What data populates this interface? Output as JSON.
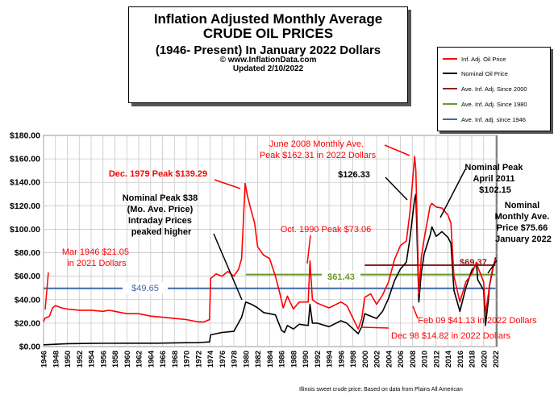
{
  "title": {
    "line1": "Inflation Adjusted Monthly Average",
    "line2": "CRUDE OIL PRICES",
    "line3": "(1946- Present) In January 2022 Dollars",
    "line4": "© www.InflationData.com",
    "line5": "Updated 2/10/2022"
  },
  "legend": {
    "items": [
      {
        "label": "Inf. Adj. Oil Price",
        "color": "#ff0000"
      },
      {
        "label": "Nominal Oil Price",
        "color": "#000000"
      },
      {
        "label": "Ave. Inf. Adj. Since 2000",
        "color": "#8b2323"
      },
      {
        "label": "Ave. Inf. Adj. Since 1980",
        "color": "#6b9a2a"
      },
      {
        "label": "Ave. Inf. adj. since 1946",
        "color": "#3f6aa8"
      }
    ]
  },
  "source_note": "Illinois sweet crude price: Based on data from Plains All American",
  "annotations": {
    "mar1946": [
      "Mar 1946 $21.05",
      "in 2021 Dollars"
    ],
    "dec1979": "Dec. 1979 Peak $139.29",
    "nominal1980": [
      "Nominal Peak $38",
      "(Mo. Ave. Price)",
      "Intraday Prices",
      "peaked higher"
    ],
    "jun2008": [
      "June 2008 Monthly Ave.",
      "Peak $162.31 in 2022 Dollars"
    ],
    "nom2008": "$126.33",
    "oct1990": "Oct. 1990 Peak $73.06",
    "apr2011": [
      "Nominal Peak",
      "April 2011",
      "$102.15"
    ],
    "jan2022": [
      "Nominal",
      "Monthly Ave.",
      "Price $75.66",
      "January 2022"
    ],
    "feb09": "Feb 09 $41.13 in 2022 Dollars",
    "dec98": "Dec 98 $14.82 in 2022 Dollars",
    "avg1946": "$49.65",
    "avg1980": "$61.43",
    "avg2000": "$69.37"
  },
  "chart_data": {
    "type": "line",
    "title": "Inflation Adjusted Monthly Average CRUDE OIL PRICES",
    "xlabel": "",
    "ylabel": "",
    "xlim": [
      1946,
      2022.2
    ],
    "ylim": [
      0,
      180
    ],
    "y_ticks": [
      "$0.00",
      "$20.00",
      "$40.00",
      "$60.00",
      "$80.00",
      "$100.00",
      "$120.00",
      "$140.00",
      "$160.00",
      "$180.00"
    ],
    "y_tick_values": [
      0,
      20,
      40,
      60,
      80,
      100,
      120,
      140,
      160,
      180
    ],
    "x_ticks": [
      "1946",
      "1948",
      "1950",
      "1952",
      "1954",
      "1956",
      "1958",
      "1960",
      "1962",
      "1964",
      "1966",
      "1968",
      "1970",
      "1972",
      "1974",
      "1976",
      "1978",
      "1980",
      "1982",
      "1984",
      "1986",
      "1988",
      "1990",
      "1992",
      "1994",
      "1996",
      "1998",
      "2000",
      "2002",
      "2004",
      "2006",
      "2008",
      "2010",
      "2012",
      "2014",
      "2016",
      "2018",
      "2020",
      "2022"
    ],
    "grid": true,
    "legend_position": "top-right",
    "series": [
      {
        "name": "Inf. Adj. Oil Price",
        "color": "#ff0000",
        "x": [
          1946,
          1946.2,
          1947,
          1947.5,
          1948,
          1949,
          1950,
          1952,
          1954,
          1956,
          1957,
          1958,
          1960,
          1962,
          1964,
          1966,
          1968,
          1970,
          1972,
          1973,
          1973.9,
          1974.1,
          1975,
          1976,
          1977,
          1978,
          1978.8,
          1979.3,
          1979.9,
          1980.3,
          1980.8,
          1981.5,
          1982,
          1983,
          1984,
          1985,
          1985.8,
          1986.3,
          1987,
          1988,
          1989,
          1990.5,
          1990.8,
          1991.2,
          1992,
          1994,
          1996,
          1997,
          1998.9,
          1999.5,
          2000,
          2001,
          2002,
          2003,
          2004,
          2005,
          2006,
          2007,
          2007.6,
          2008.4,
          2008.6,
          2009.1,
          2009.5,
          2010,
          2011,
          2011.3,
          2012,
          2013,
          2014,
          2014.5,
          2015,
          2016,
          2017,
          2018,
          2018.8,
          2019,
          2020,
          2020.3,
          2020.8,
          2021,
          2021.5,
          2022
        ],
        "y": [
          21,
          24,
          26,
          33,
          35,
          33,
          32,
          31,
          31,
          30,
          31,
          30,
          28,
          28,
          26,
          25,
          24,
          23,
          21,
          21,
          23,
          58,
          62,
          60,
          64,
          60,
          66,
          75,
          139,
          128,
          118,
          105,
          85,
          78,
          75,
          60,
          44,
          33,
          43,
          32,
          38,
          38,
          73,
          40,
          37,
          33,
          38,
          35,
          15,
          24,
          42,
          45,
          36,
          44,
          55,
          74,
          86,
          90,
          114,
          162,
          150,
          45,
          75,
          92,
          120,
          122,
          119,
          118,
          112,
          105,
          60,
          38,
          55,
          62,
          72,
          68,
          55,
          28,
          45,
          53,
          66,
          75
        ]
      },
      {
        "name": "Nominal Oil Price",
        "color": "#000000",
        "x": [
          1946,
          1950,
          1955,
          1960,
          1965,
          1970,
          1972,
          1973.9,
          1974.1,
          1976,
          1978,
          1979.3,
          1980,
          1981,
          1982,
          1983,
          1984,
          1985,
          1986,
          1986.5,
          1987,
          1988,
          1989,
          1990.5,
          1990.8,
          1991.2,
          1992,
          1994,
          1996,
          1997,
          1998.9,
          1999.5,
          2000,
          2001,
          2002,
          2003,
          2004,
          2005,
          2006,
          2007,
          2007.6,
          2008.4,
          2008.6,
          2009.1,
          2009.5,
          2010,
          2011,
          2011.3,
          2012,
          2013,
          2014,
          2014.5,
          2015,
          2016,
          2017,
          2018,
          2018.8,
          2019,
          2020,
          2020.3,
          2020.8,
          2021,
          2021.5,
          2022
        ],
        "y": [
          1.5,
          2.5,
          2.8,
          2.9,
          2.9,
          3.3,
          3.4,
          4,
          10,
          12,
          13,
          25,
          38,
          36,
          33,
          29,
          28,
          27,
          14,
          12,
          18,
          15,
          19,
          18,
          36,
          20,
          20,
          17,
          22,
          20,
          11,
          17,
          28,
          26,
          24,
          30,
          41,
          56,
          66,
          72,
          92,
          126,
          130,
          38,
          62,
          79,
          95,
          102,
          94,
          98,
          93,
          88,
          48,
          30,
          50,
          65,
          70,
          57,
          48,
          18,
          40,
          52,
          65,
          76
        ]
      },
      {
        "name": "Ave. Inf. Adj. Since 2000",
        "color": "#8b2323",
        "x": [
          2000,
          2022
        ],
        "y": [
          69.37,
          69.37
        ]
      },
      {
        "name": "Ave. Inf. Adj. Since 1980",
        "color": "#6b9a2a",
        "x": [
          1980,
          2022
        ],
        "y": [
          61.43,
          61.43
        ]
      },
      {
        "name": "Ave. Inf. adj. since 1946",
        "color": "#3f6aa8",
        "x": [
          1946,
          2022
        ],
        "y": [
          49.65,
          49.65
        ]
      }
    ]
  }
}
